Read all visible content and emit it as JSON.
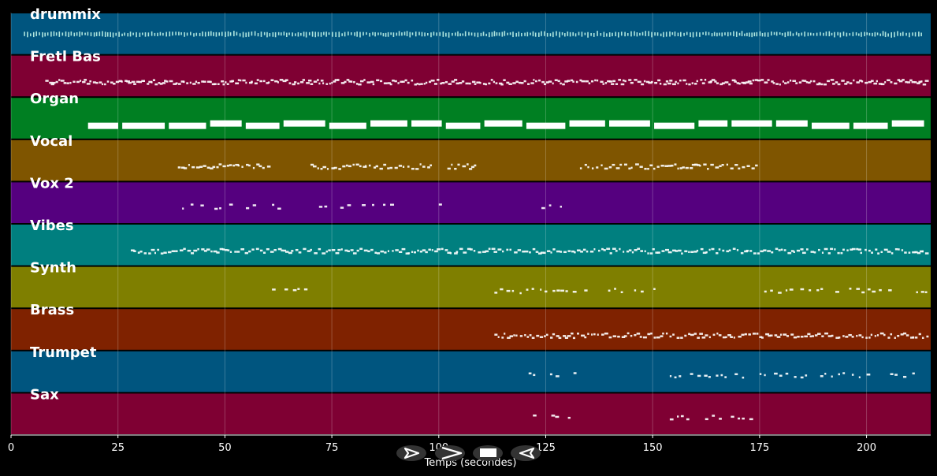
{
  "chart_data": {
    "type": "piano-roll",
    "xlabel": "Temps (secondes)",
    "xlim": [
      0,
      215
    ],
    "xticks": [
      0,
      25,
      50,
      75,
      100,
      125,
      150,
      175,
      200
    ],
    "grid": true,
    "tracks": [
      {
        "name": "drummix",
        "color": "#00557f",
        "ranges": [
          [
            3,
            213
          ]
        ],
        "density": 2.0,
        "style": "drum"
      },
      {
        "name": "Fretl Bas",
        "color": "#7f0033",
        "ranges": [
          [
            8,
            214
          ]
        ],
        "density": 1.4,
        "style": "dots"
      },
      {
        "name": "Organ",
        "color": "#007f22",
        "ranges": [
          [
            18,
            214
          ]
        ],
        "density": 0.5,
        "style": "blocks"
      },
      {
        "name": "Vocal",
        "color": "#7f5500",
        "ranges": [
          [
            39,
            60
          ],
          [
            70,
            98
          ],
          [
            102,
            109
          ],
          [
            133,
            174
          ]
        ],
        "density": 1.1,
        "style": "dots"
      },
      {
        "name": "Vox  2",
        "color": "#55007f",
        "ranges": [
          [
            40,
            50
          ],
          [
            51,
            58
          ],
          [
            61,
            68
          ],
          [
            72,
            79
          ],
          [
            82,
            90
          ],
          [
            100,
            102
          ],
          [
            124,
            130
          ]
        ],
        "density": 0.7,
        "style": "sparse"
      },
      {
        "name": "Vibes",
        "color": "#007f7f",
        "ranges": [
          [
            28,
            214
          ]
        ],
        "density": 1.2,
        "style": "dots"
      },
      {
        "name": "Synth",
        "color": "#7f7f00",
        "ranges": [
          [
            61,
            69
          ],
          [
            113,
            132
          ],
          [
            134,
            152
          ],
          [
            175,
            214
          ]
        ],
        "density": 0.9,
        "style": "sparse"
      },
      {
        "name": "Brass",
        "color": "#7f2200",
        "ranges": [
          [
            113,
            214
          ]
        ],
        "density": 1.2,
        "style": "dots"
      },
      {
        "name": "Trumpet",
        "color": "#00557f",
        "ranges": [
          [
            121,
            123
          ],
          [
            126,
            132
          ],
          [
            154,
            172
          ],
          [
            175,
            200
          ],
          [
            200,
            212
          ]
        ],
        "density": 0.9,
        "style": "sparse"
      },
      {
        "name": "Sax",
        "color": "#7f0033",
        "ranges": [
          [
            122,
            131
          ],
          [
            154,
            173
          ]
        ],
        "density": 0.9,
        "style": "sparse"
      }
    ]
  },
  "controls": {
    "play_icon": "play-outline-icon",
    "forward_icon": "fast-forward-icon",
    "stop_icon": "stop-icon",
    "back_icon": "rewind-icon"
  }
}
